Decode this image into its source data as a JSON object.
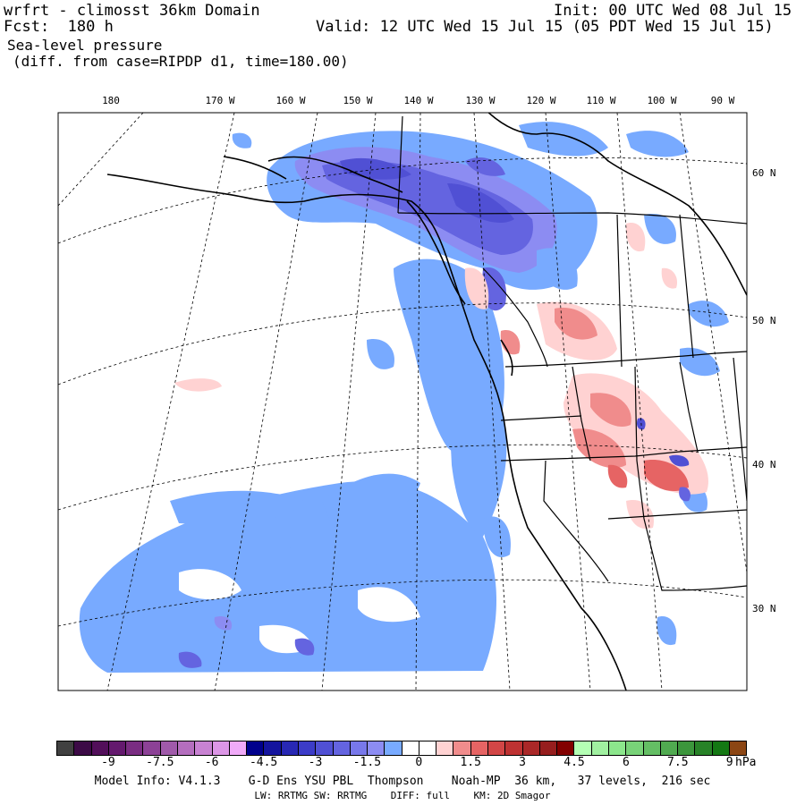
{
  "header": {
    "model_title": "wrfrt - climosst 36km Domain",
    "forecast": "Fcst:  180 h",
    "init": "Init: 00 UTC Wed 08 Jul 15",
    "valid": "Valid: 12 UTC Wed 15 Jul 15 (05 PDT Wed 15 Jul 15)",
    "field": "Sea-level pressure",
    "diff_note": "(diff. from case=RIPDP d1, time=180.00)"
  },
  "map": {
    "lon_labels": [
      "180",
      "170 W",
      "160 W",
      "150 W",
      "140 W",
      "130 W",
      "120 W",
      "110 W",
      "100 W",
      "90 W"
    ],
    "lat_labels": [
      "60 N",
      "50 N",
      "40 N",
      "30 N"
    ]
  },
  "legend": {
    "colors": [
      "#404040",
      "#3c0a46",
      "#520f5a",
      "#64196e",
      "#7a2d82",
      "#8c4196",
      "#a05aaa",
      "#b46ebe",
      "#c882d2",
      "#dc96e6",
      "#f0aaf8",
      "#00008c",
      "#14149e",
      "#2828b4",
      "#3c3cc8",
      "#5050d4",
      "#6464e0",
      "#7878ea",
      "#8c8cf2",
      "#78aaff",
      "#ffffff",
      "#ffffff",
      "#ffd2d2",
      "#f08c8c",
      "#e66464",
      "#d24646",
      "#be3232",
      "#aa2828",
      "#961e1e",
      "#820000",
      "#b4ffb4",
      "#a0f0a0",
      "#8ce68c",
      "#78d278",
      "#64be64",
      "#50aa50",
      "#3c963c",
      "#288228",
      "#147814",
      "#8c4614"
    ],
    "ticks": [
      "-9",
      "-7.5",
      "-6",
      "-4.5",
      "-3",
      "-1.5",
      "0",
      "1.5",
      "3",
      "4.5",
      "6",
      "7.5",
      "9"
    ],
    "unit": "hPa"
  },
  "footer": {
    "line1": "Model Info: V4.1.3    G-D Ens YSU PBL  Thompson    Noah-MP  36 km,   37 levels,  216 sec",
    "line2": "LW: RRTMG SW: RRTMG    DIFF: full    KM: 2D Smagor"
  }
}
